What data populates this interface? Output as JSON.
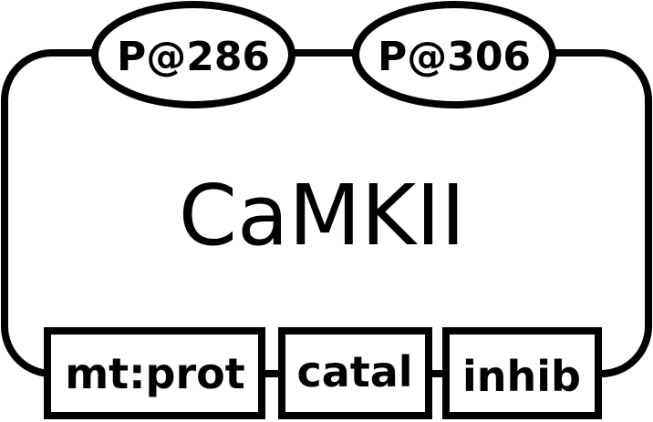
{
  "entity": {
    "label": "CaMKII",
    "state_variables": [
      "P@286",
      "P@306"
    ],
    "units_of_information": [
      "mt:prot",
      "catal",
      "inhib"
    ]
  },
  "colors": {
    "stroke": "#000000",
    "fill": "#ffffff",
    "text": "#000000"
  }
}
